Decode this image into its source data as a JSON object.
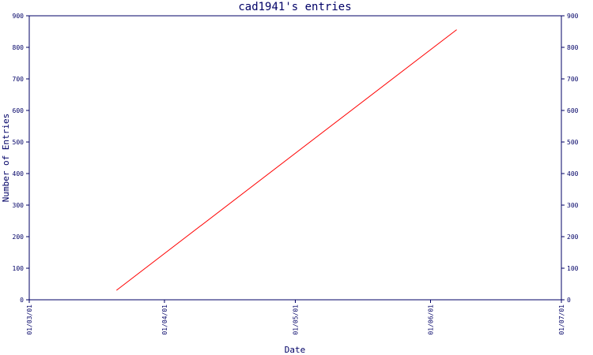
{
  "chart_data": {
    "type": "line",
    "title": "cad1941's entries",
    "xlabel": "Date",
    "ylabel": "Number of Entries",
    "x_ticks": [
      "01/03/01",
      "01/04/01",
      "01/05/01",
      "01/06/01",
      "01/07/01"
    ],
    "y_ticks": [
      0,
      100,
      200,
      300,
      400,
      500,
      600,
      700,
      800,
      900
    ],
    "ylim": [
      0,
      900
    ],
    "xlim": [
      "2001-03-01",
      "2001-07-01"
    ],
    "grid": false,
    "right_axis_labels": true,
    "series": [
      {
        "color": "#ff0000",
        "points": [
          {
            "x": "2001-03-21",
            "y": 30
          },
          {
            "x": "2001-06-07",
            "y": 856
          }
        ]
      }
    ]
  },
  "colors": {
    "axis": "#000066",
    "text": "#000066",
    "title": "#000066",
    "line": "#ff0000"
  }
}
